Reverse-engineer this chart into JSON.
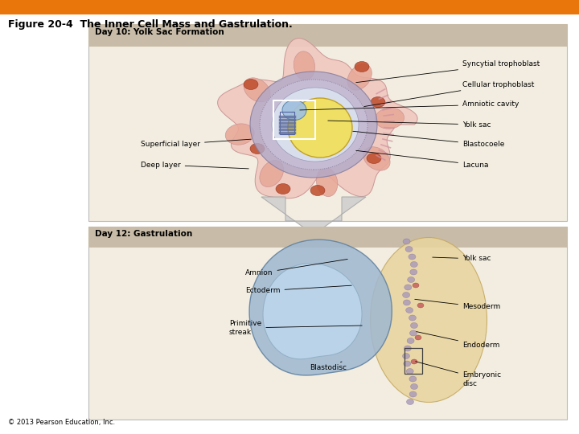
{
  "title_bar_color": "#E8760A",
  "bg_color": "#FFFFFF",
  "panel_bg": "#F2EDE0",
  "panel_header_bg": "#C8BCA8",
  "panel1_header": "Day 10: Yolk Sac Formation",
  "panel2_header": "Day 12: Gastrulation",
  "title_text": "Figure 20-4  The Inner Cell Mass and Gastrulation.",
  "copyright": "© 2013 Pearson Education, Inc.",
  "outer_pink": "#F0C8C0",
  "outer_pink_edge": "#C89090",
  "lobe_pink": "#E8A898",
  "sync_color": "#B0A8C8",
  "sync_edge": "#807898",
  "cell_color": "#C8C0D8",
  "blasto_fill": "#E0EAF5",
  "yolk_fill": "#F0E060",
  "yolk_edge": "#C0A020",
  "amnio_fill": "#A0C0E0",
  "disc_fill": "#8090B8",
  "spot_color": "#C05030",
  "arrow_fill": "#D0D0D0",
  "arrow_edge": "#AAAAAA",
  "tan_fill": "#E8D4A0",
  "tan_edge": "#C4A860",
  "amnion2_fill": "#A0B8D0",
  "amnion2_edge": "#6080A0",
  "inner2_fill": "#C0D8EE",
  "dot_fill": "#A898B8",
  "label_fontsize": 6.5,
  "header_fontsize": 7.5,
  "title_fontsize": 9
}
